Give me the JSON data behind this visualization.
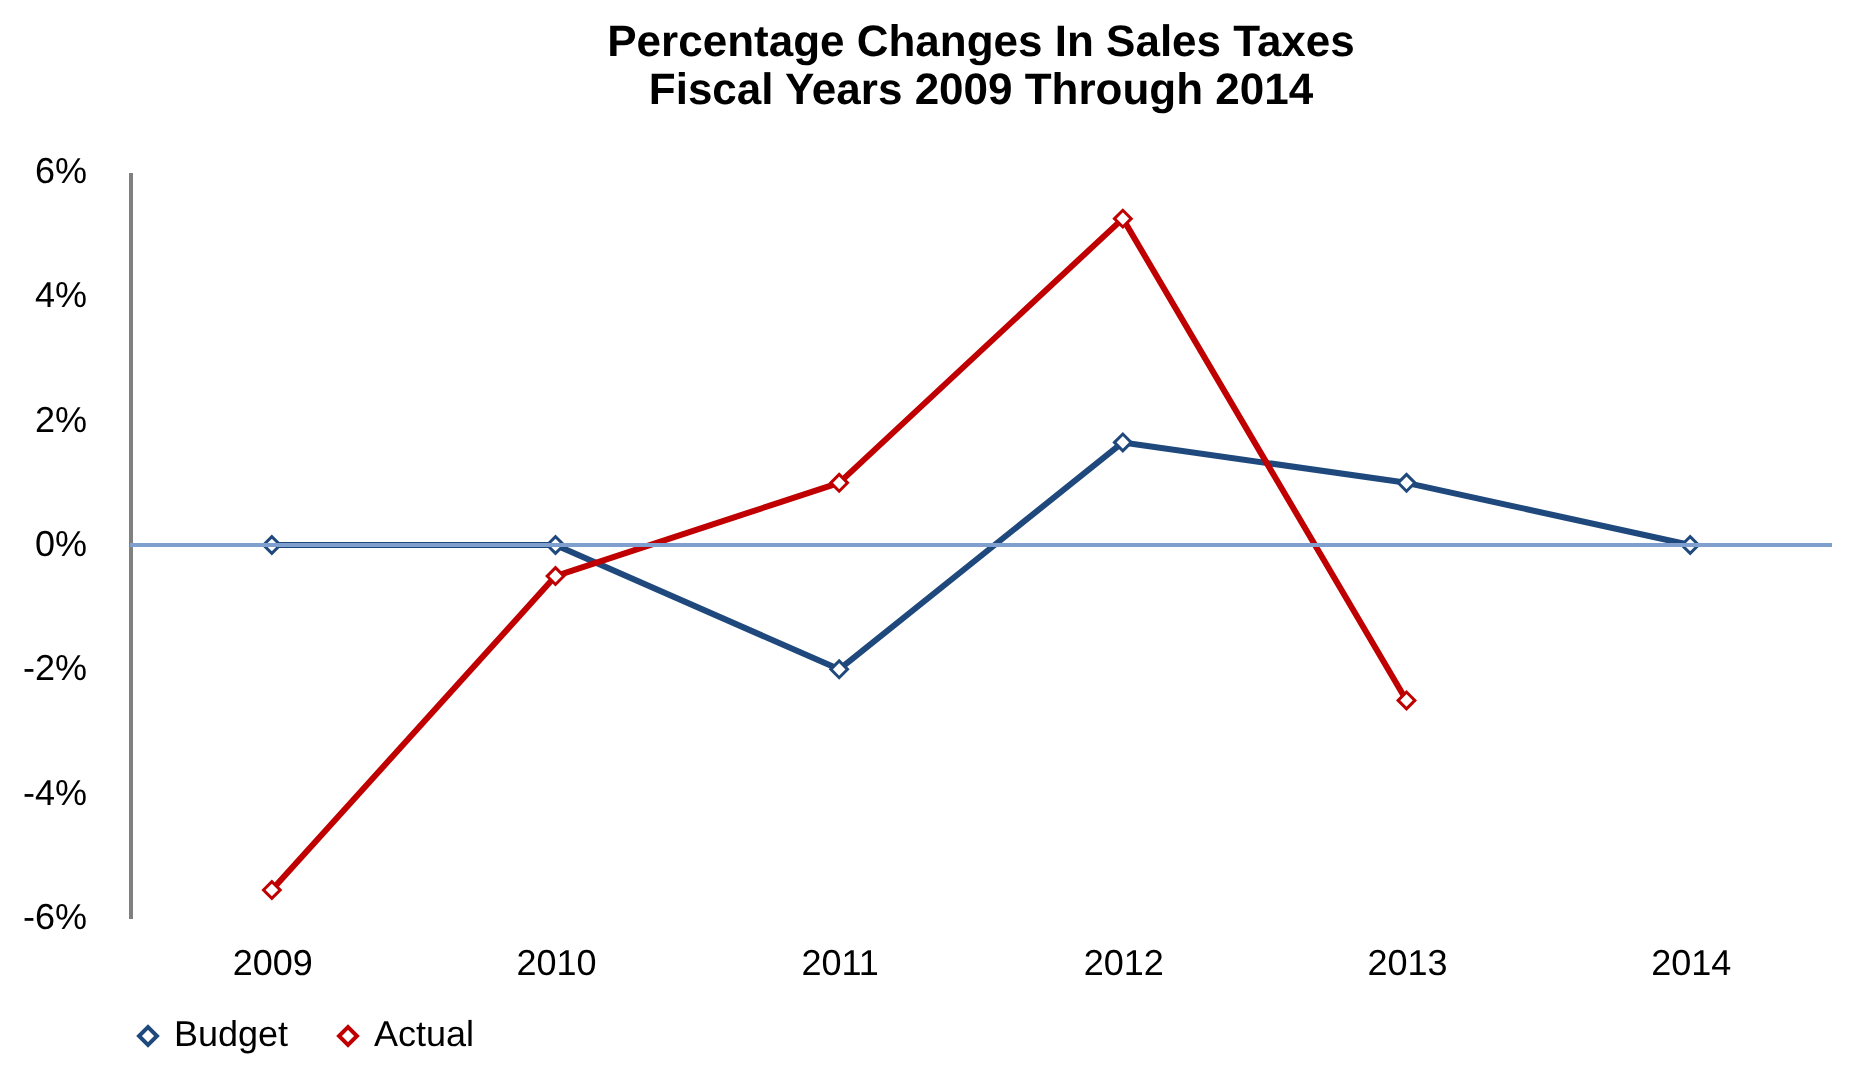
{
  "chart_data": {
    "type": "line",
    "title": "Percentage Changes In Sales Taxes\nFiscal Years 2009 Through 2014",
    "categories": [
      "2009",
      "2010",
      "2011",
      "2012",
      "2013",
      "2014"
    ],
    "series": [
      {
        "name": "Budget",
        "color": "#1f497d",
        "values": [
          0,
          0,
          -2.0,
          1.65,
          1.0,
          0
        ]
      },
      {
        "name": "Actual",
        "color": "#c00000",
        "values": [
          -5.55,
          -0.5,
          1.0,
          5.25,
          -2.5,
          null
        ]
      }
    ],
    "ylim": [
      -6,
      6
    ],
    "yticks": [
      {
        "value": -6,
        "label": "-6%"
      },
      {
        "value": -4,
        "label": "-4%"
      },
      {
        "value": -2,
        "label": "-2%"
      },
      {
        "value": 0,
        "label": "0%"
      },
      {
        "value": 2,
        "label": "2%"
      },
      {
        "value": 4,
        "label": "4%"
      },
      {
        "value": 6,
        "label": "6%"
      }
    ],
    "ref_lines": [
      {
        "axis": "y",
        "value": 0,
        "color": "#7f9fcf"
      }
    ],
    "grid": false,
    "legend": "bottom",
    "marker": "diamond",
    "line_style": "solid"
  }
}
